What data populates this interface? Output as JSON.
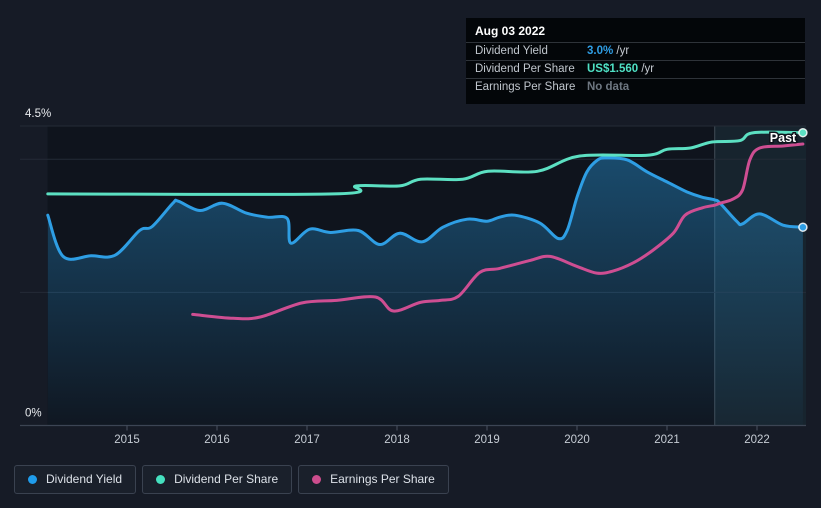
{
  "tooltip": {
    "date": "Aug 03 2022",
    "rows": [
      {
        "label": "Dividend Yield",
        "value": "3.0%",
        "suffix": " /yr",
        "color": "#2f9ee5"
      },
      {
        "label": "Dividend Per Share",
        "value": "US$1.560",
        "suffix": " /yr",
        "color": "#4fe0c4"
      },
      {
        "label": "Earnings Per Share",
        "value": "No data",
        "suffix": "",
        "color": "#6e7781"
      }
    ]
  },
  "legend": [
    {
      "label": "Dividend Yield",
      "color": "#1f9ceb"
    },
    {
      "label": "Dividend Per Share",
      "color": "#45e0bf"
    },
    {
      "label": "Earnings Per Share",
      "color": "#cc4d8d"
    }
  ],
  "chart_data": {
    "type": "area",
    "title": "Dividend history",
    "xlabel": "",
    "ylabel": "",
    "ylim": [
      0,
      4.5
    ],
    "grid": true,
    "x_ticks": [
      2015,
      2016,
      2017,
      2018,
      2019,
      2020,
      2021,
      2022
    ],
    "gridlines_pct": [
      4.5,
      4,
      2,
      0
    ],
    "y_axis_labels": [
      {
        "text": "4.5%",
        "pct": 4.5
      },
      {
        "text": "0%",
        "pct": 0
      }
    ],
    "past_label": "Past",
    "highlight_start_year": 2021.53,
    "colors": {
      "background": "#161b26",
      "plot_background": "#0f141d",
      "gridline": "#242b37",
      "axis_line": "#3c4452",
      "area_fill": "#2482bc",
      "past_band": "rgba(116,200,224,0.09)"
    },
    "series": [
      {
        "name": "Dividend Yield",
        "color": "#2e9ee4",
        "area": true,
        "end_dot": true,
        "points": [
          [
            2014.12,
            3.16
          ],
          [
            2014.29,
            2.54
          ],
          [
            2014.6,
            2.55
          ],
          [
            2014.87,
            2.56
          ],
          [
            2015.14,
            2.93
          ],
          [
            2015.28,
            2.99
          ],
          [
            2015.51,
            3.34
          ],
          [
            2015.57,
            3.37
          ],
          [
            2015.81,
            3.23
          ],
          [
            2016.06,
            3.34
          ],
          [
            2016.33,
            3.19
          ],
          [
            2016.56,
            3.13
          ],
          [
            2016.78,
            3.11
          ],
          [
            2016.82,
            2.74
          ],
          [
            2017.03,
            2.95
          ],
          [
            2017.26,
            2.9
          ],
          [
            2017.57,
            2.93
          ],
          [
            2017.81,
            2.72
          ],
          [
            2018.03,
            2.89
          ],
          [
            2018.28,
            2.76
          ],
          [
            2018.51,
            2.98
          ],
          [
            2018.78,
            3.1
          ],
          [
            2019.0,
            3.07
          ],
          [
            2019.14,
            3.13
          ],
          [
            2019.31,
            3.16
          ],
          [
            2019.59,
            3.04
          ],
          [
            2019.79,
            2.81
          ],
          [
            2019.89,
            2.93
          ],
          [
            2020.0,
            3.43
          ],
          [
            2020.11,
            3.81
          ],
          [
            2020.23,
            3.99
          ],
          [
            2020.33,
            4.02
          ],
          [
            2020.56,
            3.99
          ],
          [
            2020.78,
            3.81
          ],
          [
            2021.0,
            3.66
          ],
          [
            2021.22,
            3.51
          ],
          [
            2021.39,
            3.43
          ],
          [
            2021.53,
            3.39
          ],
          [
            2021.59,
            3.34
          ],
          [
            2021.78,
            3.06
          ],
          [
            2021.84,
            3.03
          ],
          [
            2022.03,
            3.18
          ],
          [
            2022.29,
            3.01
          ],
          [
            2022.51,
            2.98
          ]
        ]
      },
      {
        "name": "Dividend Per Share",
        "color": "#5ce0c2",
        "area": false,
        "end_dot": true,
        "points": [
          [
            2014.12,
            3.48
          ],
          [
            2017.3,
            3.48
          ],
          [
            2017.55,
            3.6
          ],
          [
            2018.03,
            3.6
          ],
          [
            2018.26,
            3.7
          ],
          [
            2018.73,
            3.7
          ],
          [
            2019.01,
            3.82
          ],
          [
            2019.56,
            3.82
          ],
          [
            2020.03,
            4.05
          ],
          [
            2020.78,
            4.06
          ],
          [
            2021.0,
            4.15
          ],
          [
            2021.26,
            4.17
          ],
          [
            2021.5,
            4.26
          ],
          [
            2021.81,
            4.28
          ],
          [
            2021.96,
            4.4
          ],
          [
            2022.51,
            4.4
          ]
        ]
      },
      {
        "name": "Earnings Per Share",
        "color": "#ce4e92",
        "area": false,
        "end_dot": false,
        "points": [
          [
            2015.73,
            1.67
          ],
          [
            2016.18,
            1.61
          ],
          [
            2016.48,
            1.63
          ],
          [
            2016.94,
            1.84
          ],
          [
            2017.33,
            1.88
          ],
          [
            2017.76,
            1.93
          ],
          [
            2017.96,
            1.72
          ],
          [
            2018.26,
            1.85
          ],
          [
            2018.48,
            1.88
          ],
          [
            2018.68,
            1.94
          ],
          [
            2018.92,
            2.3
          ],
          [
            2019.14,
            2.36
          ],
          [
            2019.48,
            2.48
          ],
          [
            2019.7,
            2.54
          ],
          [
            2020.0,
            2.39
          ],
          [
            2020.22,
            2.29
          ],
          [
            2020.4,
            2.32
          ],
          [
            2020.62,
            2.44
          ],
          [
            2020.84,
            2.63
          ],
          [
            2021.07,
            2.89
          ],
          [
            2021.2,
            3.16
          ],
          [
            2021.39,
            3.27
          ],
          [
            2021.53,
            3.31
          ],
          [
            2021.59,
            3.34
          ],
          [
            2021.73,
            3.4
          ],
          [
            2021.84,
            3.54
          ],
          [
            2021.92,
            3.99
          ],
          [
            2022.03,
            4.17
          ],
          [
            2022.29,
            4.2
          ],
          [
            2022.51,
            4.23
          ]
        ]
      }
    ]
  }
}
